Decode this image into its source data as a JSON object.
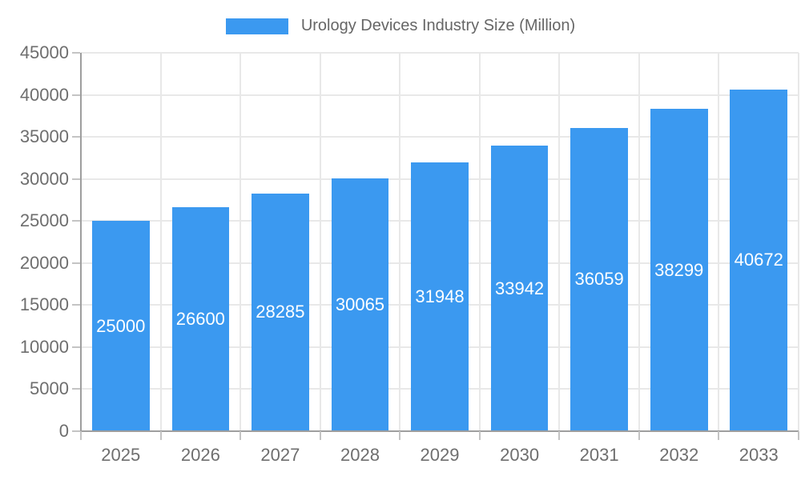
{
  "chart_data": {
    "type": "bar",
    "title": "Urology Devices Industry Size (Million)",
    "categories": [
      "2025",
      "2026",
      "2027",
      "2028",
      "2029",
      "2030",
      "2031",
      "2032",
      "2033"
    ],
    "values": [
      25000,
      26600,
      28285,
      30065,
      31948,
      33942,
      36059,
      38299,
      40672
    ],
    "xlabel": "",
    "ylabel": "",
    "ylim": [
      0,
      45000
    ],
    "ytick_step": 5000,
    "grid": true,
    "legend_position": "top",
    "bar_value_labels_visible": true
  },
  "colors": {
    "background": "#FFFFFF",
    "bar": "#3B99F0",
    "bar_label": "#FFFFFF",
    "grid": "#E8E8E8",
    "axis_line": "#9E9E9E",
    "tick": "#C4C4C4",
    "axis_text": "#6E6E6E",
    "legend_text": "#666666"
  }
}
